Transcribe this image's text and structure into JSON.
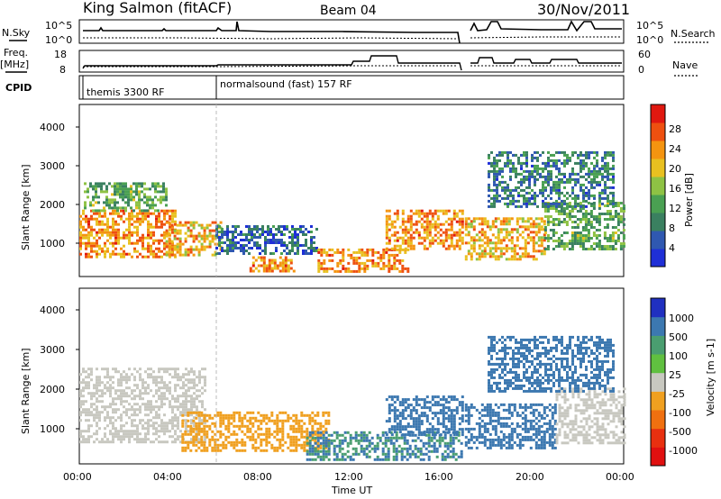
{
  "header": {
    "station": "King Salmon (fitACF)",
    "beam": "Beam 04",
    "date": "30/Nov/2011"
  },
  "left_labels": {
    "nsky": "N.Sky",
    "freq": "Freq.",
    "freq_unit": "[MHz]",
    "cpid": "CPID"
  },
  "right_labels": {
    "nsearch": "N.Search",
    "nave": "Nave"
  },
  "noise_axis": {
    "left_ticks": [
      "10^5",
      "10^0"
    ],
    "right_ticks": [
      "10^5",
      "10^0"
    ]
  },
  "freq_axis": {
    "left_ticks": [
      "18",
      "8"
    ],
    "right_ticks": [
      "60",
      "0"
    ]
  },
  "cpid": {
    "segments": [
      {
        "label": "themis 3300 RF",
        "start_hour": 0
      },
      {
        "label": "normalsound (fast) 157 RF",
        "start_hour": 6
      }
    ]
  },
  "time_axis": {
    "label": "Time UT",
    "ticks": [
      "00:00",
      "04:00",
      "08:00",
      "12:00",
      "16:00",
      "20:00",
      "00:00"
    ]
  },
  "range_axis": {
    "label": "Slant Range [km]",
    "ticks": [
      "1000",
      "2000",
      "3000",
      "4000"
    ],
    "range": [
      180,
      4600
    ]
  },
  "chart_data": [
    {
      "type": "heatmap",
      "name": "power",
      "xlabel": "Time UT",
      "ylabel": "Slant Range [km]",
      "xlim": [
        0,
        24
      ],
      "ylim": [
        180,
        4600
      ],
      "colorbar": {
        "label": "Power [dB]",
        "ticks": [
          "4",
          "8",
          "12",
          "16",
          "20",
          "24",
          "28"
        ],
        "range": [
          0,
          30
        ],
        "colors": [
          "#1f2fd6",
          "#2f58b0",
          "#3a8060",
          "#4aa052",
          "#8ec244",
          "#e8c020",
          "#f49410",
          "#ee5010",
          "#e01810"
        ]
      },
      "echo_regions": [
        {
          "t": [
            0.0,
            4.2
          ],
          "r": [
            700,
            1900
          ],
          "level": 22
        },
        {
          "t": [
            0.2,
            3.8
          ],
          "r": [
            1900,
            2600
          ],
          "level": 12
        },
        {
          "t": [
            3.8,
            6.2
          ],
          "r": [
            700,
            1600
          ],
          "level": 20
        },
        {
          "t": [
            6.0,
            10.5
          ],
          "r": [
            800,
            1500
          ],
          "level": 6
        },
        {
          "t": [
            7.5,
            9.5
          ],
          "r": [
            300,
            700
          ],
          "level": 22
        },
        {
          "t": [
            10.5,
            14.5
          ],
          "r": [
            300,
            900
          ],
          "level": 22
        },
        {
          "t": [
            13.5,
            16.9
          ],
          "r": [
            900,
            1900
          ],
          "level": 22
        },
        {
          "t": [
            17.0,
            20.5
          ],
          "r": [
            600,
            1700
          ],
          "level": 20
        },
        {
          "t": [
            20.5,
            24.0
          ],
          "r": [
            900,
            2100
          ],
          "level": 12
        },
        {
          "t": [
            18.0,
            23.5
          ],
          "r": [
            2000,
            3400
          ],
          "level": 8
        }
      ]
    },
    {
      "type": "heatmap",
      "name": "velocity",
      "xlabel": "Time UT",
      "ylabel": "Slant Range [km]",
      "xlim": [
        0,
        24
      ],
      "ylim": [
        180,
        4600
      ],
      "colorbar": {
        "label": "Velocity [m s-1]",
        "ticks": [
          "1000",
          "500",
          "100",
          "25",
          "-25",
          "-100",
          "-500",
          "-1000"
        ],
        "colors": [
          "#2030c0",
          "#3c78b0",
          "#4a9e70",
          "#60c040",
          "#c8c8c0",
          "#f0a020",
          "#f07010",
          "#e83010",
          "#e01010"
        ]
      },
      "echo_regions": [
        {
          "t": [
            0.0,
            5.5
          ],
          "r": [
            700,
            2600
          ],
          "level": 0
        },
        {
          "t": [
            4.5,
            11.0
          ],
          "r": [
            500,
            1500
          ],
          "level": -80
        },
        {
          "t": [
            10.0,
            16.9
          ],
          "r": [
            300,
            1000
          ],
          "level": 100
        },
        {
          "t": [
            13.5,
            16.9
          ],
          "r": [
            900,
            1900
          ],
          "level": 300
        },
        {
          "t": [
            17.0,
            21.0
          ],
          "r": [
            600,
            1700
          ],
          "level": 200
        },
        {
          "t": [
            21.0,
            24.0
          ],
          "r": [
            700,
            2100
          ],
          "level": 0
        },
        {
          "t": [
            18.0,
            23.5
          ],
          "r": [
            2000,
            3400
          ],
          "level": 400
        }
      ]
    }
  ]
}
